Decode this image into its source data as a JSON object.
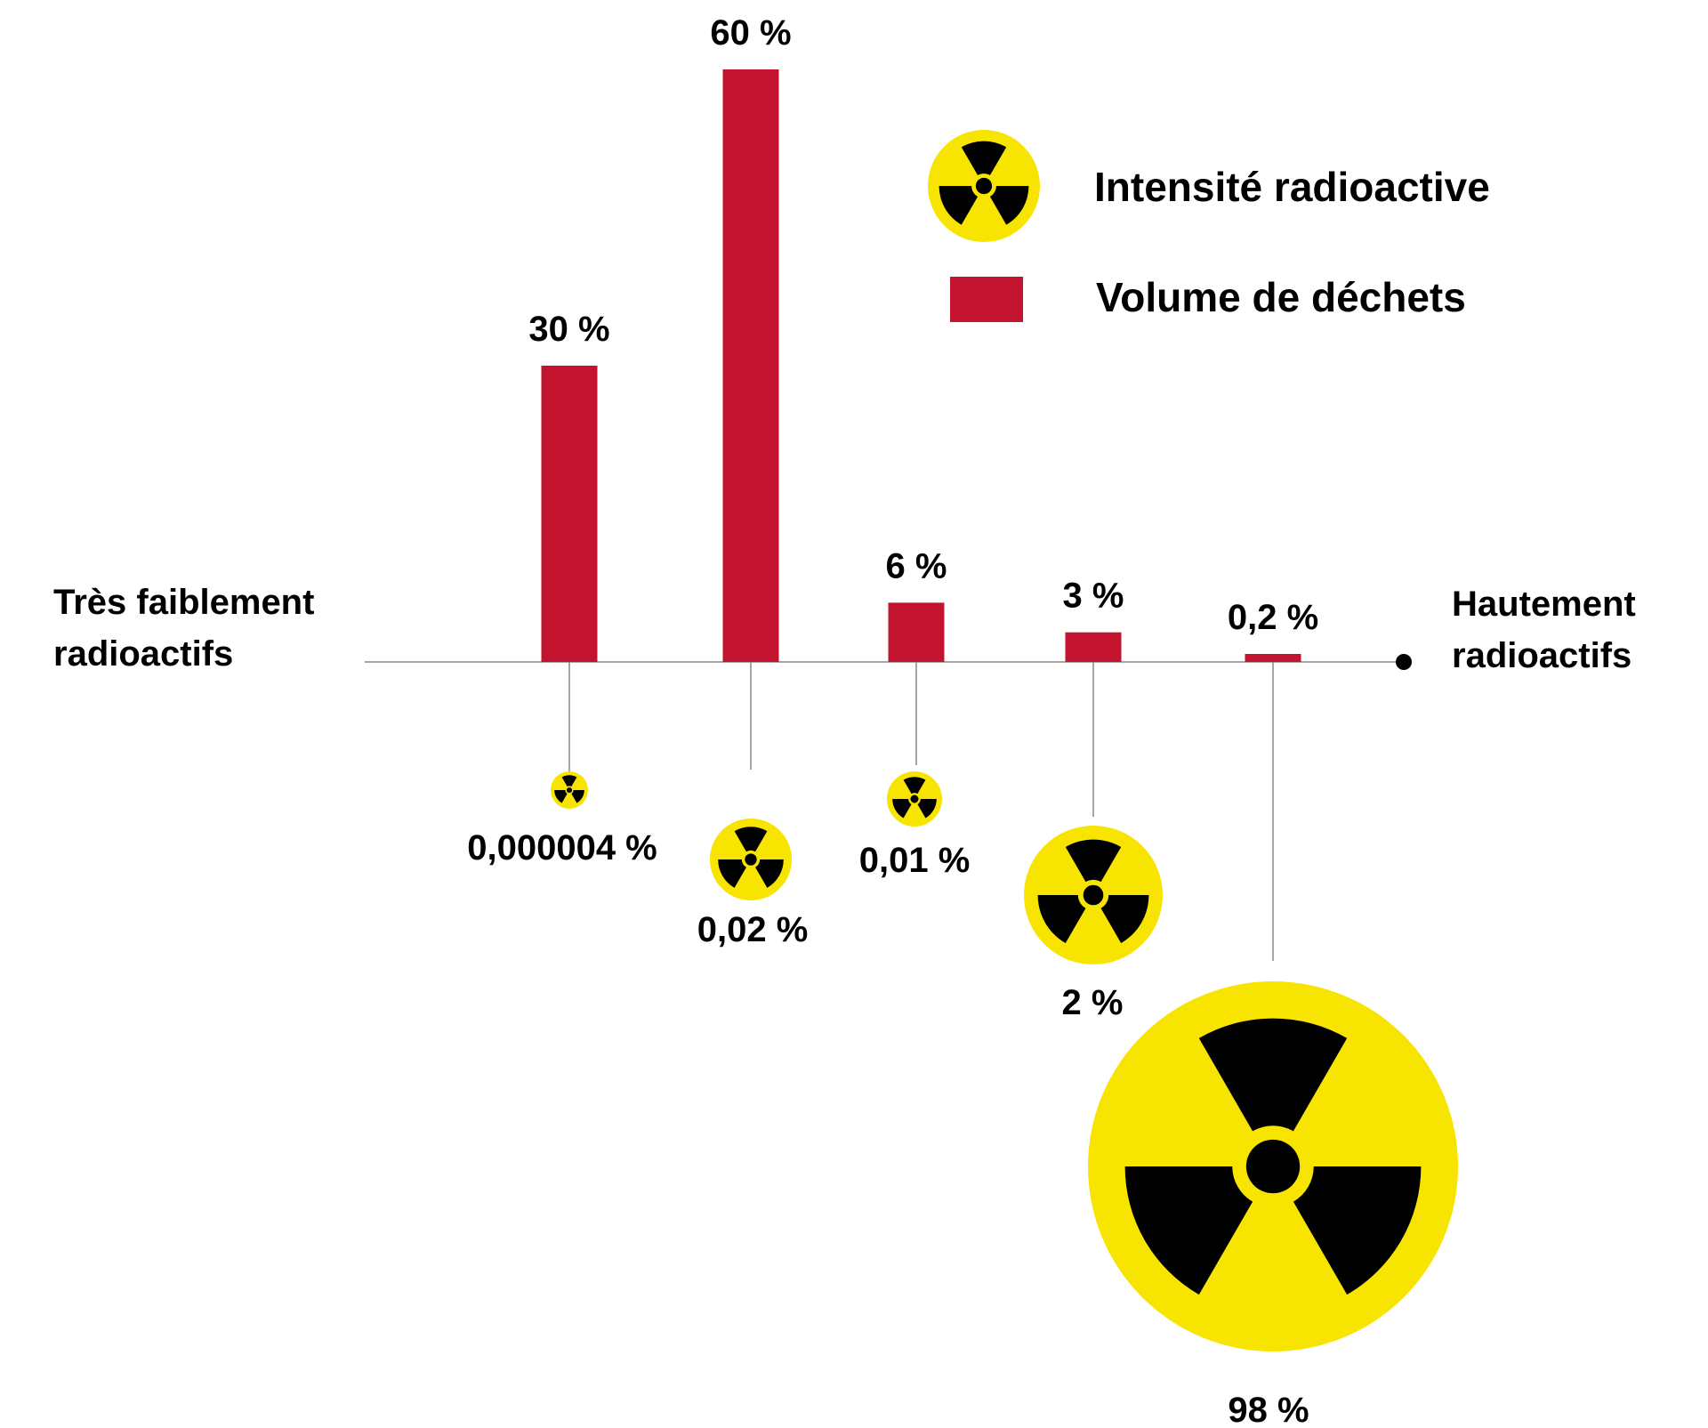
{
  "colors": {
    "bar": "#c2132f",
    "symbol_fill": "#f7e400",
    "symbol_ink": "#000000",
    "axis": "#888888"
  },
  "icons": {
    "legend_intensity": "radiation-hazard-icon",
    "legend_volume": "red-square-swatch"
  },
  "chart_data": {
    "type": "bar",
    "axis_left_label": [
      "Très faiblement",
      "radioactifs"
    ],
    "axis_right_label": [
      "Hautement",
      "radioactifs"
    ],
    "legend": [
      {
        "label": "Intensité radioactive",
        "marker": "radiation-hazard-icon"
      },
      {
        "label": "Volume de déchets",
        "marker": "red-square"
      }
    ],
    "legend_placement": "top-right",
    "series": [
      {
        "name": "Volume de déchets",
        "values": [
          30,
          60,
          6,
          3,
          0.2
        ],
        "value_labels": [
          "30 %",
          "60 %",
          "6 %",
          "3 %",
          "0,2 %"
        ]
      },
      {
        "name": "Intensité radioactive",
        "values": [
          4e-06,
          0.02,
          0.01,
          2,
          98
        ],
        "value_labels": [
          "0,000004 %",
          "0,02 %",
          "0,01 %",
          "2 %",
          "98 %"
        ]
      }
    ],
    "ylim": [
      0,
      60
    ],
    "grid": false
  }
}
